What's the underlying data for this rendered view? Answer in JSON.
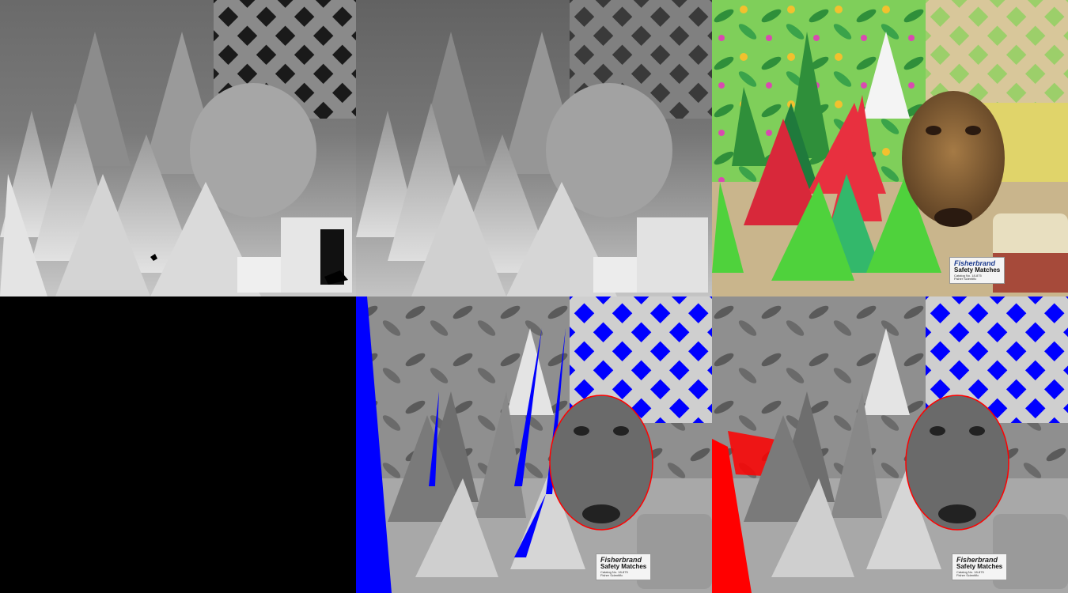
{
  "panels": [
    {
      "id": "depth-ground-truth",
      "kind": "depth-map"
    },
    {
      "id": "depth-estimated",
      "kind": "depth-map"
    },
    {
      "id": "color-image",
      "kind": "photo"
    },
    {
      "id": "empty-panel",
      "kind": "blank"
    },
    {
      "id": "error-overlay-blue",
      "kind": "error-map",
      "accent": "#0000ff"
    },
    {
      "id": "error-overlay-red",
      "kind": "error-map",
      "accent": "#ff0000"
    }
  ],
  "label_card": {
    "brand": "Fisherbrand",
    "title": "Safety Matches",
    "catalog": "Catalog No. 18-875",
    "maker": "Fisher Scientific"
  },
  "colors": {
    "error_blue": "#0000ff",
    "error_red": "#ff0000",
    "cone_green": "#4fd23c",
    "cone_red": "#e8303f",
    "background": "#000000"
  }
}
